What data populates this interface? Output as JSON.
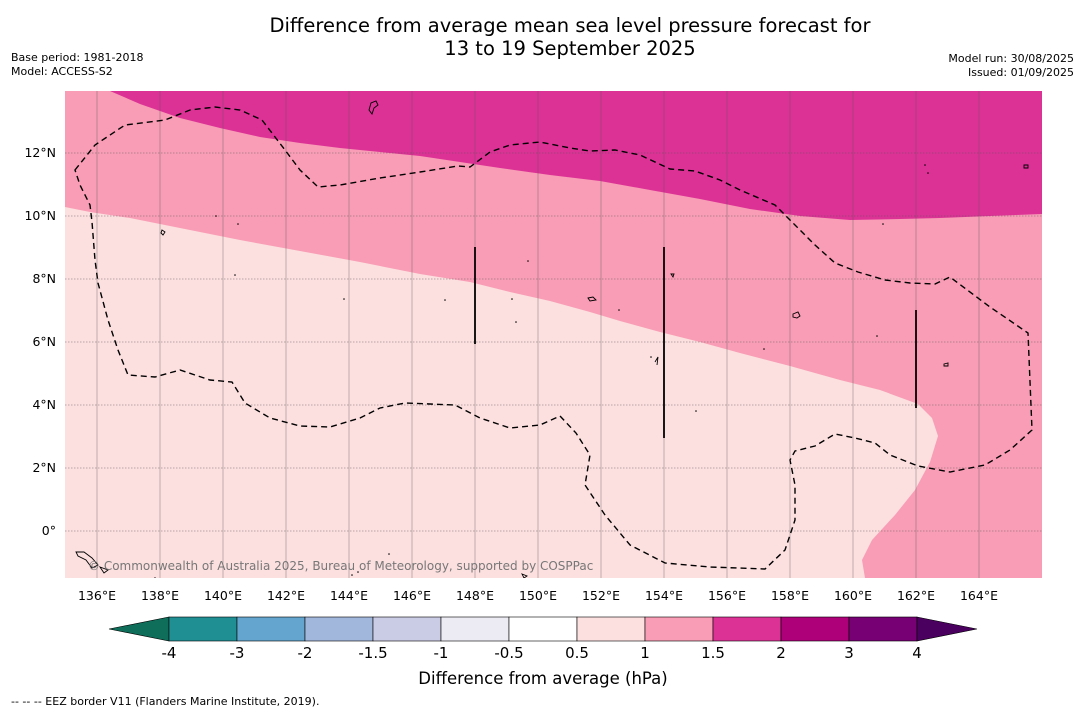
{
  "title": {
    "line1": "Difference from average mean sea level pressure forecast for",
    "line2": "13 to 19 September 2025"
  },
  "meta_left": {
    "base_period": "Base period: 1981-2018",
    "model": "Model: ACCESS-S2"
  },
  "meta_right": {
    "model_run": "Model run: 30/08/2025",
    "issued": "Issued: 01/09/2025"
  },
  "map": {
    "lat_labels": [
      "12°N",
      "10°N",
      "8°N",
      "6°N",
      "4°N",
      "2°N",
      "0°"
    ],
    "lon_labels": [
      "136°E",
      "138°E",
      "140°E",
      "142°E",
      "144°E",
      "146°E",
      "148°E",
      "150°E",
      "152°E",
      "154°E",
      "156°E",
      "158°E",
      "160°E",
      "162°E",
      "164°E"
    ],
    "copyright": "© Commonwealth of Australia 2025, Bureau of Meteorology, supported by COSPPac",
    "colors": {
      "band_0_5_to_1": "#fcdfdf",
      "band_1_to_1_5": "#f89db5",
      "band_1_5_to_2": "#dc3296"
    }
  },
  "colorbar": {
    "labels": [
      "-4",
      "-3",
      "-2",
      "-1.5",
      "-1",
      "-0.5",
      "0.5",
      "1",
      "1.5",
      "2",
      "3",
      "4"
    ],
    "colors": [
      "#1f8f94",
      "#63a5cf",
      "#a2b7dc",
      "#cacbe4",
      "#ecebf3",
      "#ffffff",
      "#fcdfdf",
      "#f89db5",
      "#dc3296",
      "#ad0079",
      "#780075"
    ],
    "under_color": "#0f6e5a",
    "over_color": "#4a005e",
    "title": "Difference from average (hPa)"
  },
  "footer": "--  --  -- EEZ border V11 (Flanders Marine Institute, 2019)."
}
